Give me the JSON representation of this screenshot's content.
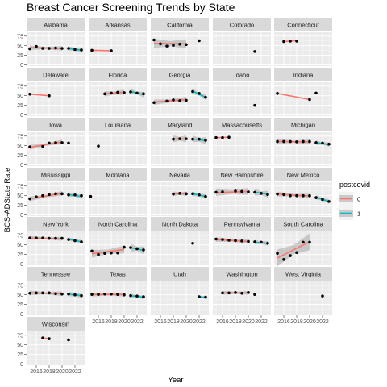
{
  "chart_data": {
    "type": "scatter",
    "title": "Breast Cancer Screening Trends by State",
    "xlabel": "Year",
    "ylabel": "BCS-ADState Rate",
    "xlim": [
      2014.5,
      2023.5
    ],
    "ylim": [
      -3,
      85
    ],
    "xticks": [
      2016,
      2018,
      2020,
      2022
    ],
    "yticks": [
      0,
      25,
      50,
      75
    ],
    "legend": {
      "title": "postcovid",
      "position": "right",
      "items": [
        {
          "label": "0",
          "color": "#F8766D"
        },
        {
          "label": "1",
          "color": "#00BFC4"
        }
      ]
    },
    "colors": {
      "pre": "#F8766D",
      "post": "#00BFC4",
      "point": "#000000",
      "panel": "#EBEBEB",
      "strip": "#D9D9D9",
      "band": "#999999"
    },
    "panels": [
      {
        "name": "Alabama",
        "points": [
          [
            2015,
            42
          ],
          [
            2016,
            48
          ],
          [
            2017,
            43
          ],
          [
            2018,
            43
          ],
          [
            2019,
            44
          ],
          [
            2020,
            43
          ],
          [
            2021,
            43
          ],
          [
            2022,
            40
          ],
          [
            2023,
            39
          ]
        ],
        "pre": [
          [
            2015,
            45
          ],
          [
            2020,
            43
          ]
        ],
        "post": [
          [
            2021,
            43
          ],
          [
            2023,
            38
          ]
        ],
        "band": 6
      },
      {
        "name": "Arkansas",
        "points": [
          [
            2015,
            38
          ],
          [
            2018,
            37
          ]
        ],
        "pre": [
          [
            2015,
            38
          ],
          [
            2018,
            37
          ]
        ]
      },
      {
        "name": "California",
        "points": [
          [
            2015,
            65
          ],
          [
            2016,
            55
          ],
          [
            2017,
            49
          ],
          [
            2018,
            51
          ],
          [
            2019,
            54
          ],
          [
            2020,
            53
          ],
          [
            2022,
            63
          ]
        ],
        "pre": [
          [
            2015,
            56
          ],
          [
            2020,
            55
          ]
        ],
        "band": 12
      },
      {
        "name": "Colorado",
        "points": [
          [
            2021,
            35
          ]
        ]
      },
      {
        "name": "Connecticut",
        "points": [
          [
            2016,
            61
          ],
          [
            2017,
            62
          ],
          [
            2018,
            62
          ]
        ],
        "pre": [
          [
            2016,
            61
          ],
          [
            2018,
            63
          ]
        ]
      },
      {
        "name": "Delaware",
        "points": [
          [
            2015,
            54
          ],
          [
            2018,
            50
          ]
        ],
        "pre": [
          [
            2015,
            54
          ],
          [
            2018,
            50
          ]
        ]
      },
      {
        "name": "Florida",
        "points": [
          [
            2017,
            55
          ],
          [
            2018,
            57
          ],
          [
            2019,
            59
          ],
          [
            2020,
            58
          ],
          [
            2021,
            60
          ],
          [
            2022,
            57
          ],
          [
            2023,
            55
          ]
        ],
        "pre": [
          [
            2017,
            55
          ],
          [
            2020,
            59
          ]
        ],
        "post": [
          [
            2021,
            61
          ],
          [
            2023,
            53
          ]
        ],
        "band": 7
      },
      {
        "name": "Georgia",
        "points": [
          [
            2015,
            32
          ],
          [
            2017,
            36
          ],
          [
            2018,
            39
          ],
          [
            2019,
            37
          ],
          [
            2020,
            38
          ],
          [
            2021,
            61
          ],
          [
            2022,
            56
          ],
          [
            2023,
            46
          ]
        ],
        "pre": [
          [
            2015,
            33
          ],
          [
            2020,
            40
          ]
        ],
        "post": [
          [
            2021,
            62
          ],
          [
            2023,
            46
          ]
        ],
        "band": 7
      },
      {
        "name": "Idaho",
        "points": [
          [
            2021,
            25
          ]
        ]
      },
      {
        "name": "Indiana",
        "points": [
          [
            2015,
            56
          ],
          [
            2020,
            40
          ],
          [
            2021,
            57
          ]
        ],
        "pre": [
          [
            2015,
            56
          ],
          [
            2020,
            40
          ]
        ]
      },
      {
        "name": "Iowa",
        "points": [
          [
            2015,
            47
          ],
          [
            2017,
            48
          ],
          [
            2018,
            57
          ],
          [
            2019,
            58
          ],
          [
            2020,
            58
          ],
          [
            2021,
            57
          ]
        ],
        "pre": [
          [
            2015,
            46
          ],
          [
            2020,
            60
          ]
        ],
        "band": 6
      },
      {
        "name": "Louisiana",
        "points": [
          [
            2016,
            49
          ]
        ]
      },
      {
        "name": "Maryland",
        "points": [
          [
            2018,
            67
          ],
          [
            2019,
            68
          ],
          [
            2020,
            68
          ],
          [
            2021,
            67
          ],
          [
            2022,
            67
          ],
          [
            2023,
            64
          ]
        ],
        "pre": [
          [
            2018,
            68
          ],
          [
            2020,
            68
          ]
        ],
        "post": [
          [
            2021,
            68
          ],
          [
            2023,
            63
          ]
        ],
        "band": 9
      },
      {
        "name": "Massachusetts",
        "points": [
          [
            2015,
            71
          ],
          [
            2016,
            71
          ],
          [
            2017,
            72
          ]
        ],
        "pre": [
          [
            2015,
            71
          ],
          [
            2017,
            72
          ]
        ]
      },
      {
        "name": "Michigan",
        "points": [
          [
            2015,
            61
          ],
          [
            2016,
            61
          ],
          [
            2017,
            61
          ],
          [
            2018,
            60
          ],
          [
            2019,
            61
          ],
          [
            2020,
            61
          ],
          [
            2021,
            58
          ],
          [
            2022,
            57
          ],
          [
            2023,
            54
          ]
        ],
        "pre": [
          [
            2015,
            61
          ],
          [
            2020,
            60
          ]
        ],
        "post": [
          [
            2021,
            58
          ],
          [
            2023,
            53
          ]
        ],
        "band": 6
      },
      {
        "name": "Mississippi",
        "points": [
          [
            2015,
            42
          ],
          [
            2016,
            47
          ],
          [
            2017,
            50
          ],
          [
            2018,
            53
          ],
          [
            2019,
            55
          ],
          [
            2020,
            55
          ],
          [
            2021,
            52
          ],
          [
            2022,
            52
          ],
          [
            2023,
            50
          ]
        ],
        "pre": [
          [
            2015,
            42
          ],
          [
            2020,
            56
          ]
        ],
        "post": [
          [
            2021,
            53
          ],
          [
            2023,
            48
          ]
        ],
        "band": 6
      },
      {
        "name": "Montana",
        "points": [
          [
            2014.8,
            48
          ]
        ]
      },
      {
        "name": "Nevada",
        "points": [
          [
            2018,
            54
          ],
          [
            2019,
            56
          ],
          [
            2020,
            55
          ],
          [
            2021,
            55
          ],
          [
            2022,
            52
          ],
          [
            2023,
            48
          ]
        ],
        "pre": [
          [
            2018,
            55
          ],
          [
            2020,
            55
          ]
        ],
        "post": [
          [
            2021,
            55
          ],
          [
            2023,
            48
          ]
        ],
        "band": 6
      },
      {
        "name": "New Hampshire",
        "points": [
          [
            2015,
            59
          ],
          [
            2016,
            60
          ],
          [
            2018,
            62
          ],
          [
            2019,
            61
          ],
          [
            2020,
            60
          ],
          [
            2021,
            59
          ],
          [
            2022,
            56
          ],
          [
            2023,
            53
          ]
        ],
        "pre": [
          [
            2015,
            58
          ],
          [
            2020,
            61
          ]
        ],
        "post": [
          [
            2021,
            59
          ],
          [
            2023,
            54
          ]
        ],
        "band": 9
      },
      {
        "name": "New Mexico",
        "points": [
          [
            2015,
            54
          ],
          [
            2016,
            53
          ],
          [
            2017,
            50
          ],
          [
            2018,
            50
          ],
          [
            2019,
            50
          ],
          [
            2020,
            50
          ],
          [
            2021,
            45
          ],
          [
            2022,
            40
          ],
          [
            2023,
            35
          ]
        ],
        "pre": [
          [
            2015,
            54
          ],
          [
            2020,
            49
          ]
        ],
        "post": [
          [
            2021,
            46
          ],
          [
            2023,
            35
          ]
        ],
        "band": 6
      },
      {
        "name": "New York",
        "points": [
          [
            2015,
            68
          ],
          [
            2016,
            68
          ],
          [
            2017,
            68
          ],
          [
            2018,
            67
          ],
          [
            2019,
            67
          ],
          [
            2020,
            67
          ],
          [
            2021,
            64
          ],
          [
            2022,
            61
          ],
          [
            2023,
            58
          ]
        ],
        "pre": [
          [
            2015,
            68
          ],
          [
            2020,
            66
          ]
        ],
        "post": [
          [
            2021,
            65
          ],
          [
            2023,
            58
          ]
        ],
        "band": 5
      },
      {
        "name": "North Carolina",
        "points": [
          [
            2015,
            34
          ],
          [
            2016,
            25
          ],
          [
            2017,
            28
          ],
          [
            2018,
            29
          ],
          [
            2019,
            29
          ],
          [
            2020,
            44
          ],
          [
            2021,
            43
          ],
          [
            2022,
            40
          ],
          [
            2023,
            37
          ]
        ],
        "pre": [
          [
            2015,
            27
          ],
          [
            2020,
            38
          ]
        ],
        "post": [
          [
            2021,
            43
          ],
          [
            2023,
            36
          ]
        ],
        "band": 10
      },
      {
        "name": "North Dakota",
        "points": [
          [
            2021,
            54
          ]
        ]
      },
      {
        "name": "Pennsylvania",
        "points": [
          [
            2015,
            65
          ],
          [
            2016,
            64
          ],
          [
            2017,
            62
          ],
          [
            2018,
            61
          ],
          [
            2019,
            60
          ],
          [
            2020,
            59
          ],
          [
            2021,
            58
          ],
          [
            2022,
            57
          ],
          [
            2023,
            54
          ]
        ],
        "pre": [
          [
            2015,
            64
          ],
          [
            2020,
            59
          ]
        ],
        "post": [
          [
            2021,
            57
          ],
          [
            2023,
            54
          ]
        ],
        "band": 6
      },
      {
        "name": "South Carolina",
        "points": [
          [
            2015,
            28
          ],
          [
            2016,
            12
          ],
          [
            2017,
            22
          ],
          [
            2018,
            30
          ],
          [
            2019,
            57
          ],
          [
            2020,
            57
          ]
        ],
        "pre": [
          [
            2015,
            16
          ],
          [
            2020,
            58
          ]
        ],
        "band": 22
      },
      {
        "name": "Tennessee",
        "points": [
          [
            2015,
            54
          ],
          [
            2016,
            55
          ],
          [
            2017,
            55
          ],
          [
            2018,
            55
          ],
          [
            2019,
            53
          ],
          [
            2020,
            52
          ],
          [
            2021,
            52
          ],
          [
            2022,
            50
          ],
          [
            2023,
            48
          ]
        ],
        "pre": [
          [
            2015,
            55
          ],
          [
            2020,
            53
          ]
        ],
        "post": [
          [
            2021,
            52
          ],
          [
            2023,
            48
          ]
        ],
        "band": 6
      },
      {
        "name": "Texas",
        "points": [
          [
            2015,
            51
          ],
          [
            2016,
            51
          ],
          [
            2017,
            52
          ],
          [
            2018,
            52
          ],
          [
            2019,
            51
          ],
          [
            2020,
            50
          ],
          [
            2021,
            48
          ],
          [
            2022,
            47
          ],
          [
            2023,
            45
          ]
        ],
        "pre": [
          [
            2015,
            51
          ],
          [
            2020,
            51
          ]
        ],
        "post": [
          [
            2021,
            48
          ],
          [
            2023,
            44
          ]
        ],
        "band": 5
      },
      {
        "name": "Utah",
        "points": [
          [
            2022,
            45
          ],
          [
            2023,
            44
          ]
        ],
        "post": [
          [
            2022,
            45
          ],
          [
            2023,
            44
          ]
        ]
      },
      {
        "name": "Washington",
        "points": [
          [
            2016,
            55
          ],
          [
            2017,
            55
          ],
          [
            2018,
            56
          ],
          [
            2019,
            54
          ],
          [
            2020,
            56
          ],
          [
            2021,
            51
          ]
        ],
        "pre": [
          [
            2016,
            55
          ],
          [
            2020,
            55
          ]
        ],
        "band": 5
      },
      {
        "name": "West Virginia",
        "points": [
          [
            2022,
            47
          ]
        ]
      },
      {
        "name": "Wisconsin",
        "points": [
          [
            2017,
            68
          ],
          [
            2018,
            66
          ],
          [
            2021,
            63
          ]
        ],
        "pre": [
          [
            2017,
            68
          ],
          [
            2018,
            66
          ]
        ]
      }
    ]
  }
}
